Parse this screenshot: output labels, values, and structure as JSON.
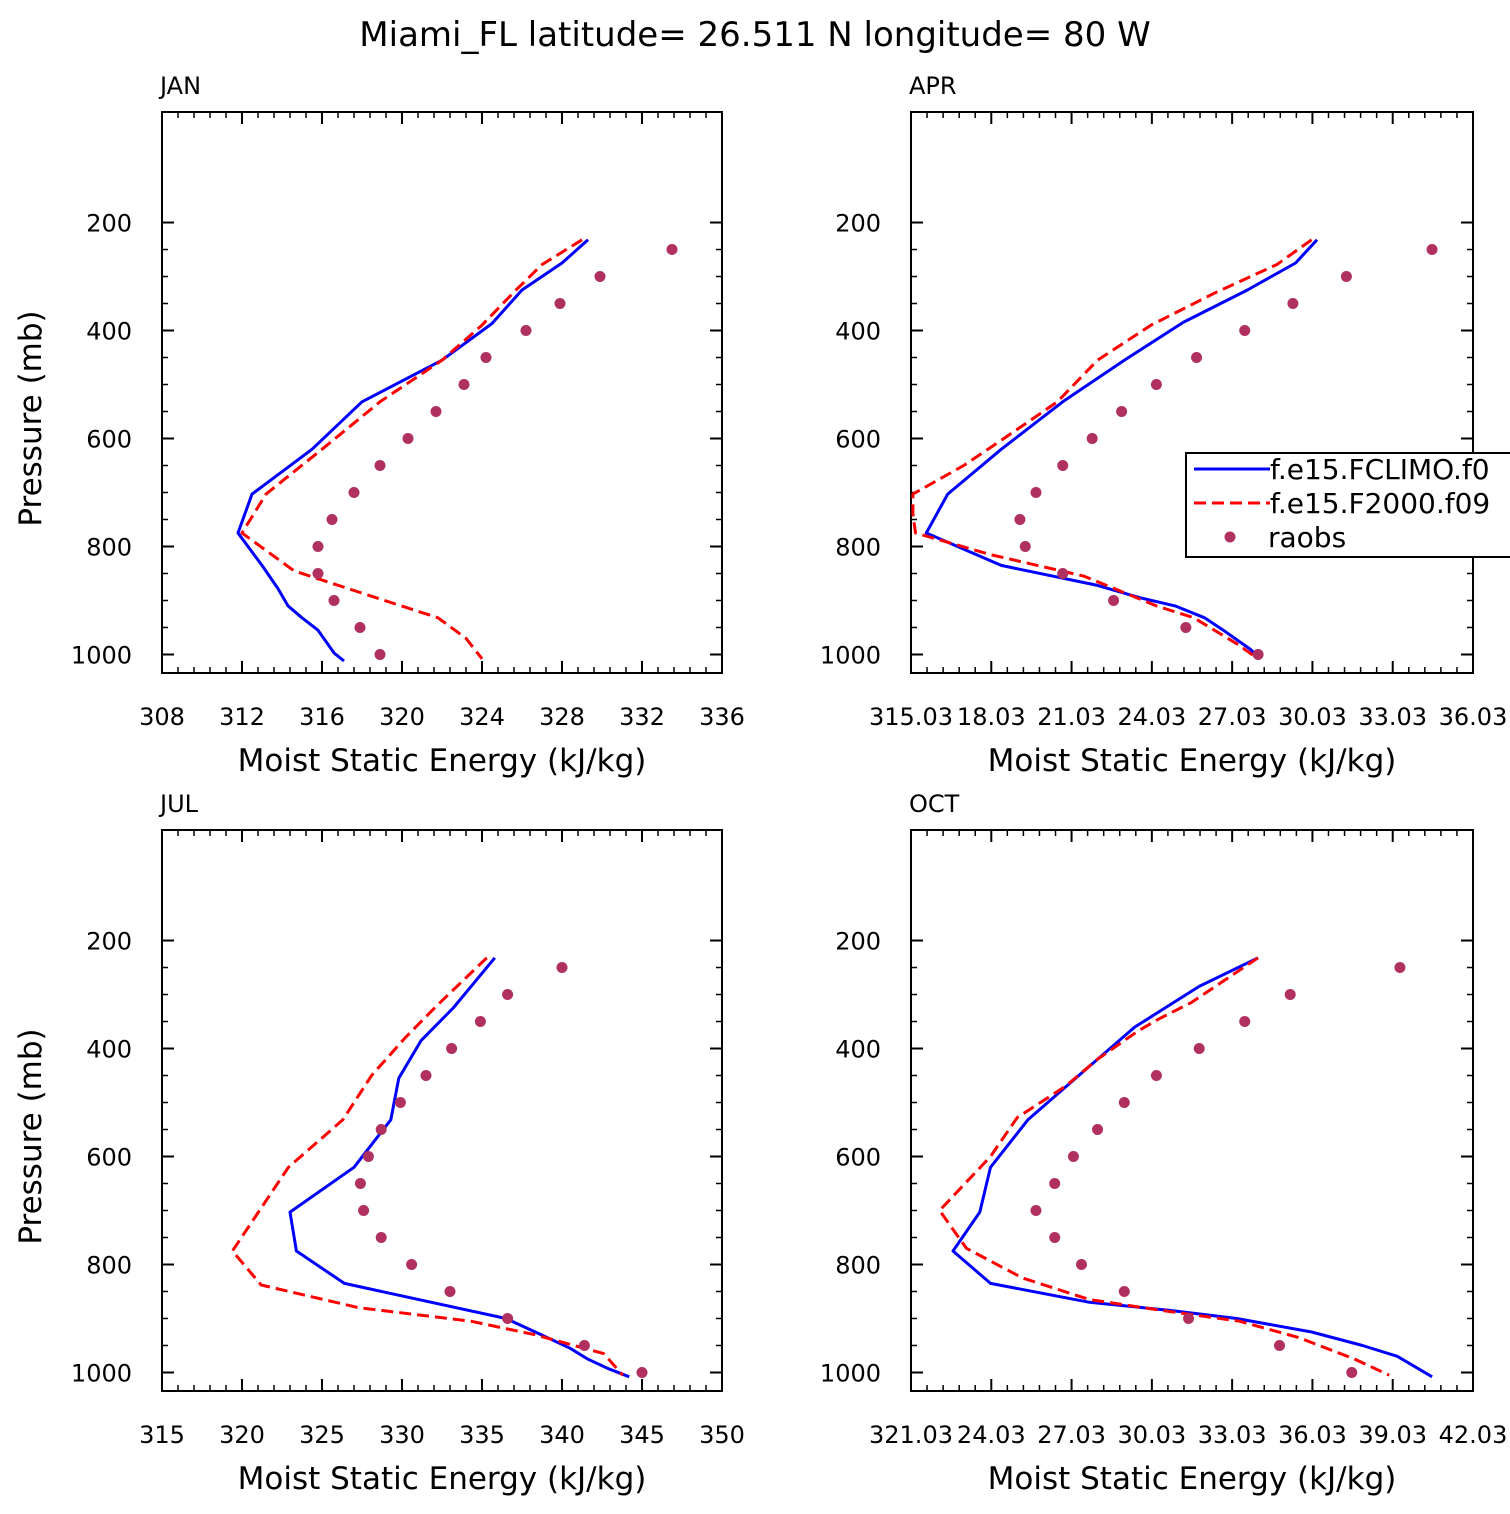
{
  "figure": {
    "title": "Miami_FL  latitude= 26.511 N longitude= 80 W"
  },
  "colors": {
    "model1": "#0000ff",
    "model2": "#ff0000",
    "raobs": "#b03060"
  },
  "legend": {
    "entries": [
      {
        "label": "f.e15.FCLIMO.f0",
        "style": "solid",
        "color": "#0000ff"
      },
      {
        "label": "f.e15.F2000.f09",
        "style": "dashed",
        "color": "#ff0000"
      },
      {
        "label": "raobs",
        "style": "dot",
        "color": "#b03060"
      }
    ],
    "placement": "right-middle of APR panel"
  },
  "chart_data": [
    {
      "type": "line",
      "panel_title": "JAN",
      "xlabel": "Moist Static Energy (kJ/kg)",
      "ylabel": "Pressure (mb)",
      "xlim": [
        308,
        336
      ],
      "ylim": [
        200,
        1000
      ],
      "y_inverted": true,
      "xticks": [
        308,
        312,
        316,
        320,
        324,
        328,
        332,
        336
      ],
      "xtick_labels": [
        "308",
        "312",
        "316",
        "320",
        "324",
        "328",
        "332",
        "336"
      ],
      "yticks": [
        200,
        400,
        600,
        800,
        1000
      ],
      "ytick_labels": [
        "200",
        "400",
        "600",
        "800",
        "1000"
      ],
      "series": [
        {
          "name": "f.e15.FCLIMO.f0",
          "style": "solid",
          "color": "#0000ff",
          "x": [
            329.3,
            328.0,
            326.0,
            324.5,
            322.0,
            318.0,
            315.5,
            312.5,
            311.8,
            313.0,
            313.8,
            314.3,
            315.0,
            315.8,
            316.6,
            317.1
          ],
          "y": [
            232,
            275,
            325,
            387,
            455,
            532,
            620,
            703,
            775,
            835,
            878,
            910,
            932,
            955,
            997,
            1012
          ]
        },
        {
          "name": "f.e15.F2000.f09",
          "style": "dashed",
          "color": "#ff0000",
          "x": [
            329.0,
            327.0,
            325.7,
            324.0,
            322.0,
            318.9,
            316.0,
            313.2,
            312.0,
            314.6,
            318.3,
            321.8,
            323.2,
            324.0
          ],
          "y": [
            232,
            278,
            325,
            390,
            455,
            532,
            620,
            703,
            775,
            845,
            890,
            932,
            970,
            1008
          ]
        },
        {
          "name": "raobs",
          "style": "dot",
          "color": "#b03060",
          "x": [
            333.5,
            329.9,
            327.9,
            326.2,
            324.2,
            323.1,
            321.7,
            320.3,
            318.9,
            317.6,
            316.5,
            315.8,
            315.8,
            316.6,
            317.9,
            318.9
          ],
          "y": [
            250,
            300,
            350,
            400,
            450,
            500,
            550,
            600,
            650,
            700,
            750,
            800,
            850,
            900,
            950,
            1000
          ]
        }
      ]
    },
    {
      "type": "line",
      "panel_title": "APR",
      "xlabel": "Moist Static Energy (kJ/kg)",
      "ylabel": "",
      "xlim": [
        315.03,
        336.03
      ],
      "ylim": [
        200,
        1000
      ],
      "y_inverted": true,
      "xticks": [
        315.03,
        318.03,
        321.03,
        324.03,
        327.03,
        330.03,
        333.03,
        336.03
      ],
      "xtick_labels": [
        "315.03",
        "18.03",
        "21.03",
        "24.03",
        "27.03",
        "30.03",
        "33.03",
        "36.03"
      ],
      "yticks": [
        200,
        400,
        600,
        800,
        1000
      ],
      "ytick_labels": [
        "200",
        "400",
        "600",
        "800",
        "1000"
      ],
      "series": [
        {
          "name": "f.e15.FCLIMO.f0",
          "style": "solid",
          "color": "#0000ff",
          "x": [
            330.2,
            329.4,
            327.6,
            325.2,
            323.0,
            320.7,
            318.4,
            316.4,
            315.6,
            318.4,
            322.0,
            323.6,
            324.9,
            326.0,
            326.7,
            327.7,
            328.1
          ],
          "y": [
            232,
            275,
            325,
            385,
            455,
            532,
            620,
            703,
            775,
            835,
            872,
            895,
            910,
            932,
            955,
            990,
            1008
          ]
        },
        {
          "name": "f.e15.F2000.f09",
          "style": "dashed",
          "color": "#ff0000",
          "x": [
            330.0,
            328.7,
            326.4,
            324.0,
            322.0,
            320.5,
            318.5,
            317.0,
            315.1,
            315.1,
            315.2,
            318.0,
            321.5,
            324.2,
            325.6,
            327.2,
            328.0
          ],
          "y": [
            232,
            278,
            330,
            390,
            455,
            532,
            600,
            650,
            703,
            740,
            775,
            815,
            855,
            910,
            932,
            980,
            1008
          ]
        },
        {
          "name": "raobs",
          "style": "dot",
          "color": "#b03060",
          "x": [
            334.5,
            331.3,
            329.3,
            327.5,
            325.7,
            324.2,
            322.9,
            321.8,
            320.7,
            319.7,
            319.1,
            319.3,
            320.7,
            322.6,
            325.3,
            328.0
          ],
          "y": [
            250,
            300,
            350,
            400,
            450,
            500,
            550,
            600,
            650,
            700,
            750,
            800,
            850,
            900,
            950,
            1000
          ]
        }
      ]
    },
    {
      "type": "line",
      "panel_title": "JUL",
      "xlabel": "Moist Static Energy (kJ/kg)",
      "ylabel": "Pressure (mb)",
      "xlim": [
        315,
        350
      ],
      "ylim": [
        200,
        1000
      ],
      "y_inverted": true,
      "xticks": [
        315,
        320,
        325,
        330,
        335,
        340,
        345,
        350
      ],
      "xtick_labels": [
        "315",
        "320",
        "325",
        "330",
        "335",
        "340",
        "345",
        "350"
      ],
      "yticks": [
        200,
        400,
        600,
        800,
        1000
      ],
      "ytick_labels": [
        "200",
        "400",
        "600",
        "800",
        "1000"
      ],
      "series": [
        {
          "name": "f.e15.FCLIMO.f0",
          "style": "solid",
          "color": "#0000ff",
          "x": [
            335.8,
            333.2,
            331.2,
            329.8,
            329.3,
            327.0,
            323.0,
            323.4,
            326.4,
            336.5,
            338.7,
            340.5,
            341.6,
            342.9,
            344.2
          ],
          "y": [
            232,
            325,
            385,
            455,
            532,
            620,
            703,
            775,
            835,
            900,
            930,
            955,
            975,
            993,
            1008
          ]
        },
        {
          "name": "f.e15.F2000.f09",
          "style": "dashed",
          "color": "#ff0000",
          "x": [
            335.3,
            332.2,
            330.2,
            328.1,
            326.3,
            322.9,
            319.4,
            321.2,
            327.3,
            334.3,
            338.3,
            342.6,
            343.8
          ],
          "y": [
            232,
            320,
            380,
            450,
            532,
            620,
            775,
            838,
            880,
            905,
            930,
            965,
            1005
          ]
        },
        {
          "name": "raobs",
          "style": "dot",
          "color": "#b03060",
          "x": [
            340.0,
            336.6,
            334.9,
            333.1,
            331.5,
            329.9,
            328.7,
            327.9,
            327.4,
            327.6,
            328.7,
            330.6,
            333.0,
            336.6,
            341.4,
            345.0
          ],
          "y": [
            250,
            300,
            350,
            400,
            450,
            500,
            550,
            600,
            650,
            700,
            750,
            800,
            850,
            900,
            950,
            1000
          ]
        }
      ]
    },
    {
      "type": "line",
      "panel_title": "OCT",
      "xlabel": "Moist Static Energy (kJ/kg)",
      "ylabel": "",
      "xlim": [
        321.03,
        342.03
      ],
      "ylim": [
        200,
        1000
      ],
      "y_inverted": true,
      "xticks": [
        321.03,
        324.03,
        327.03,
        330.03,
        333.03,
        336.03,
        339.03,
        342.03
      ],
      "xtick_labels": [
        "321.03",
        "24.03",
        "27.03",
        "30.03",
        "33.03",
        "36.03",
        "39.03",
        "42.03"
      ],
      "yticks": [
        200,
        400,
        600,
        800,
        1000
      ],
      "ytick_labels": [
        "200",
        "400",
        "600",
        "800",
        "1000"
      ],
      "series": [
        {
          "name": "f.e15.FCLIMO.f0",
          "style": "solid",
          "color": "#0000ff",
          "x": [
            334.0,
            331.8,
            329.4,
            327.3,
            325.4,
            324.0,
            323.6,
            322.6,
            324.0,
            327.7,
            330.7,
            333.2,
            336.0,
            337.9,
            339.2,
            340.5
          ],
          "y": [
            232,
            285,
            360,
            450,
            532,
            620,
            703,
            775,
            835,
            870,
            885,
            900,
            925,
            950,
            970,
            1008
          ]
        },
        {
          "name": "f.e15.F2000.f09",
          "style": "dashed",
          "color": "#ff0000",
          "x": [
            334.0,
            331.5,
            330.3,
            329.5,
            328.0,
            326.8,
            325.0,
            324.0,
            322.1,
            323.1,
            325.2,
            327.7,
            330.4,
            333.3,
            335.5,
            337.6,
            338.9
          ],
          "y": [
            232,
            315,
            345,
            368,
            420,
            470,
            528,
            600,
            700,
            770,
            825,
            865,
            885,
            905,
            935,
            975,
            1005
          ]
        },
        {
          "name": "raobs",
          "style": "dot",
          "color": "#b03060",
          "x": [
            339.3,
            335.2,
            333.5,
            331.8,
            330.2,
            329.0,
            328.0,
            327.1,
            326.4,
            325.7,
            326.4,
            327.4,
            329.0,
            331.4,
            334.8,
            337.5
          ],
          "y": [
            250,
            300,
            350,
            400,
            450,
            500,
            550,
            600,
            650,
            700,
            750,
            800,
            850,
            900,
            950,
            1000
          ]
        }
      ]
    }
  ]
}
